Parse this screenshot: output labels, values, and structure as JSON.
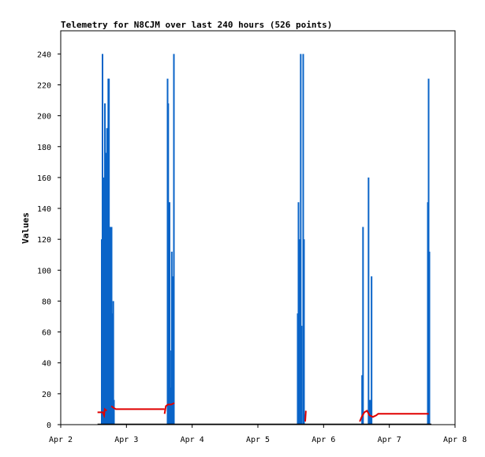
{
  "chart_data": {
    "type": "bar",
    "title": "Telemetry for N8CJM over last 240 hours (526 points)",
    "ylabel": "Values",
    "xlabel": "",
    "ylim": [
      0,
      255
    ],
    "xlim": [
      0,
      6
    ],
    "x_ticks": [
      "Apr 2",
      "Apr 3",
      "Apr 4",
      "Apr 5",
      "Apr 6",
      "Apr 7",
      "Apr 8"
    ],
    "y_ticks": [
      0,
      20,
      40,
      60,
      80,
      100,
      120,
      140,
      160,
      180,
      200,
      220,
      240
    ],
    "grid": false,
    "colors": {
      "bars": "#0a64c8",
      "line": "#e00000",
      "baseline": "#000000"
    },
    "series": [
      {
        "type": "bar",
        "points": [
          [
            0.624,
            120
          ],
          [
            0.636,
            240
          ],
          [
            0.648,
            160
          ],
          [
            0.66,
            8
          ],
          [
            0.672,
            208
          ],
          [
            0.684,
            176
          ],
          [
            0.694,
            96
          ],
          [
            0.704,
            192
          ],
          [
            0.714,
            160
          ],
          [
            0.724,
            224
          ],
          [
            0.734,
            224
          ],
          [
            0.744,
            112
          ],
          [
            0.754,
            128
          ],
          [
            0.764,
            64
          ],
          [
            0.774,
            128
          ],
          [
            0.79,
            72
          ],
          [
            0.8,
            80
          ],
          [
            0.81,
            16
          ],
          [
            1.626,
            224
          ],
          [
            1.636,
            208
          ],
          [
            1.646,
            32
          ],
          [
            1.656,
            144
          ],
          [
            1.666,
            48
          ],
          [
            1.676,
            24
          ],
          [
            1.69,
            112
          ],
          [
            1.706,
            96
          ],
          [
            1.722,
            240
          ],
          [
            3.606,
            72
          ],
          [
            3.618,
            144
          ],
          [
            3.628,
            96
          ],
          [
            3.64,
            120
          ],
          [
            3.652,
            240
          ],
          [
            3.664,
            64
          ],
          [
            3.69,
            240
          ],
          [
            3.702,
            120
          ],
          [
            4.586,
            32
          ],
          [
            4.6,
            128
          ],
          [
            4.684,
            160
          ],
          [
            4.696,
            16
          ],
          [
            4.706,
            12
          ],
          [
            4.716,
            16
          ],
          [
            4.73,
            96
          ],
          [
            5.586,
            144
          ],
          [
            5.598,
            224
          ],
          [
            5.61,
            112
          ]
        ]
      },
      {
        "type": "line",
        "segments": [
          [
            [
              0.56,
              8
            ],
            [
              0.64,
              8
            ],
            [
              0.66,
              6
            ],
            [
              0.67,
              10
            ],
            [
              0.7,
              9
            ]
          ],
          [
            [
              0.77,
              12
            ],
            [
              0.8,
              11
            ],
            [
              0.84,
              10
            ],
            [
              1.06,
              10
            ],
            [
              1.2,
              10
            ],
            [
              1.58,
              10
            ]
          ],
          [
            [
              1.58,
              7
            ],
            [
              1.6,
              12
            ],
            [
              1.63,
              13
            ],
            [
              1.68,
              13
            ],
            [
              1.73,
              14
            ]
          ],
          [
            [
              3.72,
              2
            ],
            [
              3.73,
              9
            ]
          ],
          [
            [
              4.55,
              2
            ],
            [
              4.58,
              5
            ],
            [
              4.62,
              8
            ],
            [
              4.66,
              9
            ],
            [
              4.7,
              6
            ],
            [
              4.75,
              5
            ],
            [
              4.8,
              6
            ],
            [
              4.83,
              7
            ],
            [
              5.0,
              7
            ],
            [
              5.6,
              7
            ]
          ]
        ]
      }
    ]
  }
}
